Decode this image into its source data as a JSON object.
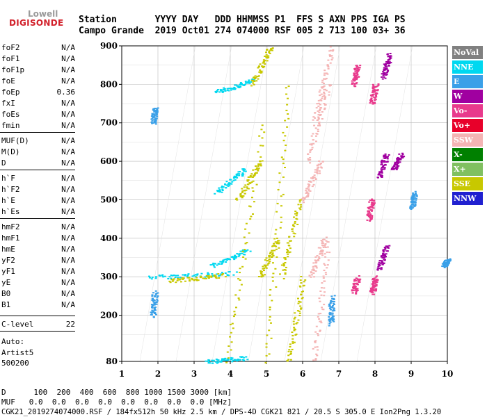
{
  "logo": {
    "line1": "Lowell",
    "line2": "DIGISONDE"
  },
  "header": {
    "row1": "Station       YYYY DAY   DDD HHMMSS P1  FFS S AXN PPS IGA PS",
    "row2": "Campo Grande  2019 Oct01 274 074000 RSF 005 2 713 100 03+ 36"
  },
  "params": [
    {
      "name": "foF2",
      "value": "N/A"
    },
    {
      "name": "foF1",
      "value": "N/A"
    },
    {
      "name": "foF1p",
      "value": "N/A"
    },
    {
      "name": "foE",
      "value": "N/A"
    },
    {
      "name": "foEp",
      "value": "0.36"
    },
    {
      "name": "fxI",
      "value": "N/A"
    },
    {
      "name": "foEs",
      "value": "N/A"
    },
    {
      "name": "fmin",
      "value": "N/A"
    },
    {
      "name": "MUF(D)",
      "value": "N/A"
    },
    {
      "name": "M(D)",
      "value": "N/A"
    },
    {
      "name": "D",
      "value": "N/A"
    },
    {
      "name": "h`F",
      "value": "N/A"
    },
    {
      "name": "h`F2",
      "value": "N/A"
    },
    {
      "name": "h`E",
      "value": "N/A"
    },
    {
      "name": "h`Es",
      "value": "N/A"
    },
    {
      "name": "hmF2",
      "value": "N/A"
    },
    {
      "name": "hmF1",
      "value": "N/A"
    },
    {
      "name": "hmE",
      "value": "N/A"
    },
    {
      "name": "yF2",
      "value": "N/A"
    },
    {
      "name": "yF1",
      "value": "N/A"
    },
    {
      "name": "yE",
      "value": "N/A"
    },
    {
      "name": "B0",
      "value": "N/A"
    },
    {
      "name": "B1",
      "value": "N/A"
    },
    {
      "name": "C-level",
      "value": "22"
    }
  ],
  "auto": {
    "label": "Auto:",
    "artist": "Artist5",
    "version": "500200"
  },
  "legend": [
    {
      "label": "NoVal",
      "color": "#808080"
    },
    {
      "label": "NNE",
      "color": "#00d8f0"
    },
    {
      "label": "E",
      "color": "#3aa0e8"
    },
    {
      "label": "W",
      "color": "#a000a0"
    },
    {
      "label": "Vo-",
      "color": "#e83a8c"
    },
    {
      "label": "Vo+",
      "color": "#e8002a"
    },
    {
      "label": "SSW",
      "color": "#f4b4b4"
    },
    {
      "label": "X-",
      "color": "#008000"
    },
    {
      "label": "X+",
      "color": "#80c060"
    },
    {
      "label": "SSE",
      "color": "#c8c800"
    },
    {
      "label": "NNW",
      "color": "#2020d0"
    }
  ],
  "bottom": {
    "d_row": "D      100  200  400  600  800 1000 1500 3000 [km]",
    "muf_row": "MUF   0.0  0.0  0.0  0.0  0.0  0.0  0.0  0.0 [MHz]",
    "footer": "CGK21_2019274074000.RSF / 184fx512h 50 kHz 2.5 km / DPS-4D CGK21 821 / 20.5 S 305.0 E Ion2Png 1.3.20"
  },
  "chart_data": {
    "type": "scatter",
    "xlim": [
      1,
      10
    ],
    "ylim": [
      80,
      900
    ],
    "x_ticks": [
      "1",
      "2",
      "3",
      "4",
      "5",
      "6",
      "7",
      "8",
      "9",
      "10"
    ],
    "y_ticks": [
      "80",
      "200",
      "300",
      "400",
      "500",
      "600",
      "700",
      "800",
      "900"
    ],
    "series": [
      {
        "name": "NNE",
        "color": "#00d8f0",
        "segments": [
          [
            1.75,
            300,
            4.1,
            310
          ],
          [
            3.6,
            780,
            4.6,
            810
          ],
          [
            3.6,
            520,
            4.4,
            580
          ],
          [
            3.5,
            330,
            4.5,
            370
          ],
          [
            3.3,
            80,
            4.4,
            90
          ]
        ]
      },
      {
        "name": "SSE",
        "color": "#c8c800",
        "segments": [
          [
            2.3,
            290,
            3.8,
            305
          ],
          [
            3.9,
            80,
            4.9,
            700
          ],
          [
            4.2,
            500,
            4.8,
            600
          ],
          [
            4.6,
            800,
            5.1,
            900
          ],
          [
            5.0,
            80,
            5.6,
            800
          ],
          [
            5.4,
            300,
            5.9,
            500
          ],
          [
            5.6,
            80,
            6.0,
            300
          ],
          [
            4.8,
            300,
            5.3,
            400
          ]
        ]
      },
      {
        "name": "SSW",
        "color": "#f4b4b4",
        "segments": [
          [
            6.3,
            80,
            6.7,
            400
          ],
          [
            6.0,
            500,
            6.5,
            600
          ],
          [
            6.1,
            600,
            6.7,
            800
          ],
          [
            6.3,
            700,
            6.8,
            900
          ],
          [
            6.2,
            300,
            6.6,
            400
          ]
        ]
      },
      {
        "name": "W",
        "color": "#a000a0",
        "segments": [
          [
            8.2,
            820,
            8.4,
            880
          ],
          [
            8.1,
            560,
            8.3,
            620
          ],
          [
            8.1,
            320,
            8.3,
            380
          ],
          [
            8.5,
            580,
            8.7,
            620
          ]
        ]
      },
      {
        "name": "Vo-",
        "color": "#e83a8c",
        "segments": [
          [
            7.4,
            800,
            7.5,
            850
          ],
          [
            7.9,
            750,
            8.0,
            800
          ],
          [
            7.8,
            450,
            7.9,
            500
          ],
          [
            7.4,
            260,
            7.5,
            300
          ],
          [
            7.9,
            260,
            8.0,
            300
          ]
        ]
      },
      {
        "name": "E",
        "color": "#3aa0e8",
        "segments": [
          [
            1.85,
            200,
            1.9,
            260
          ],
          [
            1.85,
            700,
            1.9,
            740
          ],
          [
            6.75,
            180,
            6.8,
            250
          ],
          [
            9.0,
            480,
            9.1,
            520
          ],
          [
            9.9,
            330,
            10.0,
            345
          ]
        ]
      }
    ]
  }
}
